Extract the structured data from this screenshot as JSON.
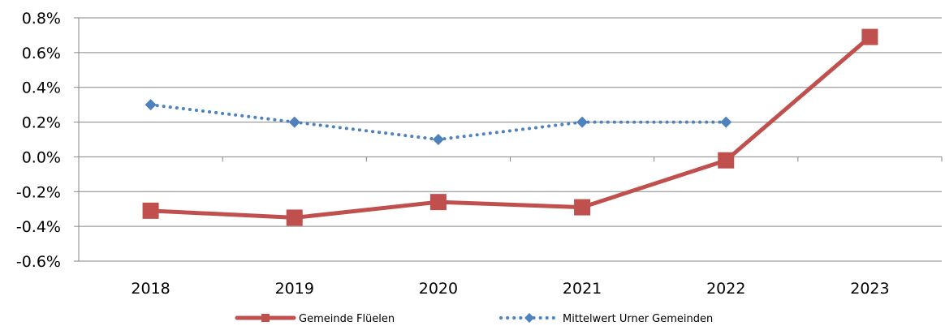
{
  "chart_data": {
    "type": "line",
    "categories": [
      "2018",
      "2019",
      "2020",
      "2021",
      "2022",
      "2023"
    ],
    "ylim": [
      -0.6,
      0.8
    ],
    "yticks": [
      -0.6,
      -0.4,
      -0.2,
      0.0,
      0.2,
      0.4,
      0.6,
      0.8
    ],
    "ytick_labels": [
      "-0.6%",
      "-0.4%",
      "-0.2%",
      "0.0%",
      "0.2%",
      "0.4%",
      "0.6%",
      "0.8%"
    ],
    "grid": true,
    "legend_position": "bottom",
    "series": [
      {
        "name": "Gemeinde Flüelen",
        "values": [
          -0.31,
          -0.35,
          -0.26,
          -0.29,
          -0.02,
          0.69
        ],
        "color": "#c0504d",
        "style": "solid",
        "marker": "square"
      },
      {
        "name": "Mittelwert Urner Gemeinden",
        "values": [
          0.3,
          0.2,
          0.1,
          0.2,
          0.2,
          null
        ],
        "color": "#4f81bd",
        "style": "dotted",
        "marker": "diamond"
      }
    ]
  }
}
